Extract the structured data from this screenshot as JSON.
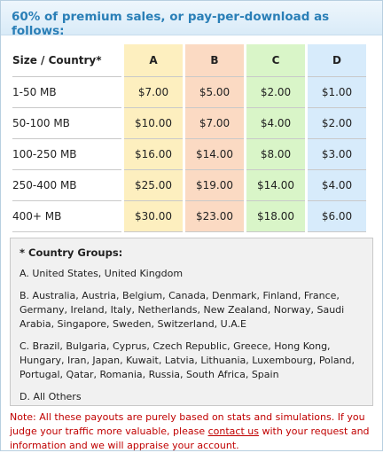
{
  "header": {
    "title": "60% of premium sales, or pay-per-download as follows:"
  },
  "table": {
    "size_header": "Size / Country*",
    "columns": [
      "A",
      "B",
      "C",
      "D"
    ],
    "rows": [
      {
        "size": "1-50 MB",
        "values": [
          "$7.00",
          "$5.00",
          "$2.00",
          "$1.00"
        ]
      },
      {
        "size": "50-100 MB",
        "values": [
          "$10.00",
          "$7.00",
          "$4.00",
          "$2.00"
        ]
      },
      {
        "size": "100-250 MB",
        "values": [
          "$16.00",
          "$14.00",
          "$8.00",
          "$3.00"
        ]
      },
      {
        "size": "250-400 MB",
        "values": [
          "$25.00",
          "$19.00",
          "$14.00",
          "$4.00"
        ]
      },
      {
        "size": "400+ MB",
        "values": [
          "$30.00",
          "$23.00",
          "$18.00",
          "$6.00"
        ]
      }
    ],
    "column_colors": [
      "#fdefbf",
      "#fbdac3",
      "#d9f5c8",
      "#d7ebfb"
    ]
  },
  "groups": {
    "title": "* Country Groups:",
    "items": [
      "A. United States, United Kingdom",
      "B. Australia, Austria, Belgium, Canada, Denmark, Finland, France, Germany, Ireland, Italy, Netherlands, New Zealand, Norway, Saudi Arabia, Singapore, Sweden, Switzerland, U.A.E",
      "C. Brazil, Bulgaria, Cyprus, Czech Republic, Greece, Hong Kong, Hungary, Iran, Japan, Kuwait, Latvia, Lithuania, Luxembourg, Poland, Portugal, Qatar, Romania, Russia, South Africa, Spain",
      "D. All Others"
    ]
  },
  "note": {
    "before": "Note: All these payouts are purely based on stats and simulations. If you judge your traffic more valuable, please ",
    "link": "contact us",
    "after": " with your request and information and we will appraise your account."
  }
}
